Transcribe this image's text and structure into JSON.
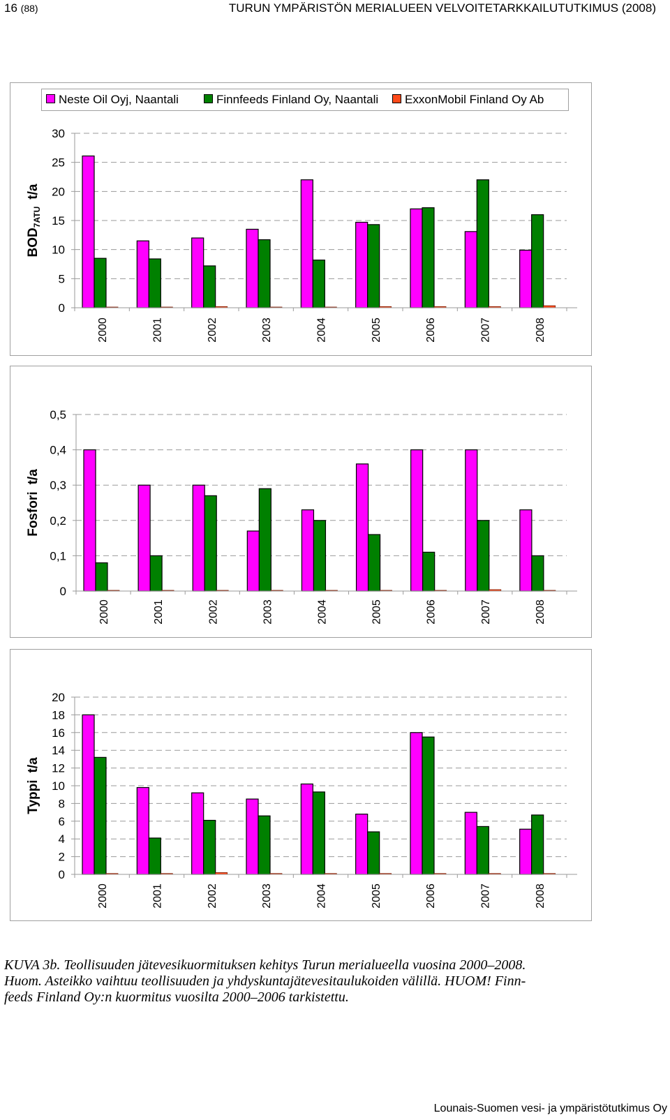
{
  "header": {
    "page_number": "16",
    "page_total": "(88)",
    "report_title": "TURUN YMPÄRISTÖN MERIALUEEN VELVOITETARKKAILUTUTKIMUS (2008)"
  },
  "colors": {
    "neste": "#ff00ff",
    "finnfeeds": "#008000",
    "exxon": "#ff4a1a"
  },
  "legend": [
    "Neste Oil Oyj, Naantali",
    "Finnfeeds Finland Oy, Naantali",
    "ExxonMobil Finland Oy Ab"
  ],
  "chart_data": [
    {
      "type": "bar",
      "ylabel_main": "BOD",
      "ylabel_sub": "7ATU",
      "ylabel_unit": "t/a",
      "ylim": [
        0,
        30
      ],
      "yticks": [
        "0",
        "5",
        "10",
        "15",
        "20",
        "25",
        "30"
      ],
      "categories": [
        "2000",
        "2001",
        "2002",
        "2003",
        "2004",
        "2005",
        "2006",
        "2007",
        "2008"
      ],
      "series": [
        {
          "name": "Neste Oil Oyj, Naantali",
          "values": [
            26.1,
            11.5,
            12.0,
            13.5,
            22.0,
            14.7,
            17.0,
            13.1,
            9.9
          ]
        },
        {
          "name": "Finnfeeds Finland Oy, Naantali",
          "values": [
            8.5,
            8.4,
            7.2,
            11.7,
            8.2,
            14.3,
            17.2,
            22.0,
            16.0
          ]
        },
        {
          "name": "ExxonMobil Finland Oy Ab",
          "values": [
            0.1,
            0.1,
            0.2,
            0.1,
            0.1,
            0.2,
            0.2,
            0.2,
            0.35
          ]
        }
      ]
    },
    {
      "type": "bar",
      "ylabel_main": "Fosfori",
      "ylabel_sub": "",
      "ylabel_unit": "t/a",
      "ylim": [
        0,
        0.5
      ],
      "yticks": [
        "0",
        "0,1",
        "0,2",
        "0,3",
        "0,4",
        "0,5"
      ],
      "categories": [
        "2000",
        "2001",
        "2002",
        "2003",
        "2004",
        "2005",
        "2006",
        "2007",
        "2008"
      ],
      "series": [
        {
          "name": "Neste Oil Oyj, Naantali",
          "values": [
            0.4,
            0.3,
            0.3,
            0.17,
            0.23,
            0.36,
            0.4,
            0.4,
            0.23
          ]
        },
        {
          "name": "Finnfeeds Finland Oy, Naantali",
          "values": [
            0.08,
            0.1,
            0.27,
            0.29,
            0.2,
            0.16,
            0.11,
            0.2,
            0.1
          ]
        },
        {
          "name": "ExxonMobil Finland Oy Ab",
          "values": [
            0.002,
            0.002,
            0.002,
            0.002,
            0.002,
            0.002,
            0.002,
            0.004,
            0.002
          ]
        }
      ]
    },
    {
      "type": "bar",
      "ylabel_main": "Typpi",
      "ylabel_sub": "",
      "ylabel_unit": "t/a",
      "ylim": [
        0,
        20
      ],
      "yticks": [
        "0",
        "2",
        "4",
        "6",
        "8",
        "10",
        "12",
        "14",
        "16",
        "18",
        "20"
      ],
      "categories": [
        "2000",
        "2001",
        "2002",
        "2003",
        "2004",
        "2005",
        "2006",
        "2007",
        "2008"
      ],
      "series": [
        {
          "name": "Neste Oil Oyj, Naantali",
          "values": [
            18.0,
            9.8,
            9.2,
            8.5,
            10.2,
            6.8,
            16.0,
            7.0,
            5.1
          ]
        },
        {
          "name": "Finnfeeds Finland Oy, Naantali",
          "values": [
            13.2,
            4.1,
            6.1,
            6.6,
            9.3,
            4.8,
            15.5,
            5.4,
            6.7
          ]
        },
        {
          "name": "ExxonMobil Finland Oy Ab",
          "values": [
            0.1,
            0.1,
            0.2,
            0.1,
            0.1,
            0.1,
            0.1,
            0.1,
            0.1
          ]
        }
      ]
    }
  ],
  "caption": {
    "lines": [
      "KUVA 3b. Teollisuuden jätevesikuormituksen kehitys Turun merialueella vuosina 2000–2008.",
      "Huom. Asteikko vaihtuu teollisuuden ja yhdyskuntajätevesitaulukoiden välillä. HUOM! Finn-",
      "feeds Finland Oy:n kuormitus vuosilta 2000–2006 tarkistettu."
    ]
  },
  "footer": "Lounais-Suomen vesi- ja ympäristötutkimus Oy"
}
